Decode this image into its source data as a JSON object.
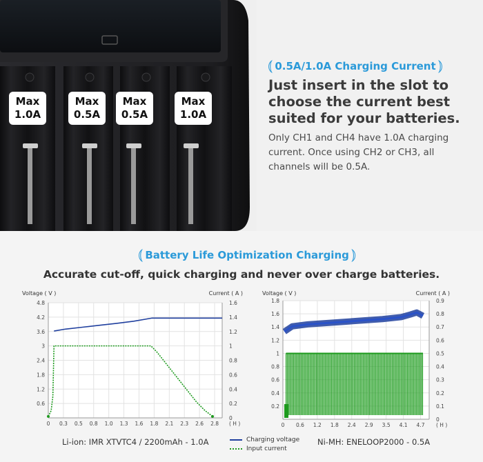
{
  "top": {
    "section_title": "0.5A/1.0A Charging Current",
    "heading": "Just insert in the slot to choose the current best suited for your batteries.",
    "description": "Only CH1 and CH4 have 1.0A charging current. Once using CH2 or CH3, all channels will be 0.5A.",
    "badges": [
      {
        "line1": "Max",
        "line2": "1.0A"
      },
      {
        "line1": "Max",
        "line2": "0.5A"
      },
      {
        "line1": "Max",
        "line2": "0.5A"
      },
      {
        "line1": "Max",
        "line2": "1.0A"
      }
    ]
  },
  "bottom": {
    "section_title": "Battery Life Optimization Charging",
    "heading": "Accurate cut-off, quick charging and never over charge batteries.",
    "legend": {
      "voltage": "Charging voltage",
      "current": "Input current"
    }
  },
  "colors": {
    "accent": "#2b9ad9",
    "voltage_line": "#1f3f9e",
    "current_line": "#1d9a1d"
  },
  "chart_data": [
    {
      "type": "line",
      "caption": "Li-ion: IMR XTVTC4 / 2200mAh - 1.0A",
      "ylabel_left": "Voltage ( V )",
      "ylabel_right": "Current ( A )",
      "xunit": "( H )",
      "x_ticks": [
        "0",
        "0.3",
        "0.5",
        "0.8",
        "1.0",
        "1.3",
        "1.6",
        "1.8",
        "2.1",
        "2.3",
        "2.6",
        "2.8"
      ],
      "y_left_ticks": [
        "0.6",
        "1.2",
        "1.8",
        "2.4",
        "3",
        "3.6",
        "4.2",
        "4.8"
      ],
      "y_right_ticks": [
        "0",
        "0.2",
        "0.4",
        "0.6",
        "0.8",
        "1",
        "1.2",
        "1.4",
        "1.6"
      ],
      "xlim": [
        0,
        3.05
      ],
      "ylim_left": [
        0,
        4.8
      ],
      "ylim_right": [
        0,
        1.6
      ],
      "series": [
        {
          "name": "Charging voltage",
          "axis": "left",
          "x": [
            0.1,
            0.3,
            0.6,
            0.9,
            1.2,
            1.5,
            1.82,
            2.2,
            2.6,
            3.05
          ],
          "y": [
            3.62,
            3.7,
            3.78,
            3.86,
            3.94,
            4.03,
            4.16,
            4.16,
            4.16,
            4.16
          ]
        },
        {
          "name": "Input current",
          "axis": "right",
          "x": [
            0.0,
            0.05,
            0.08,
            0.1,
            0.3,
            0.8,
            1.3,
            1.8,
            1.9,
            2.0,
            2.2,
            2.4,
            2.6,
            2.75,
            2.85,
            2.88
          ],
          "y": [
            0.02,
            0.1,
            0.3,
            1.0,
            1.0,
            1.0,
            1.0,
            1.0,
            0.92,
            0.82,
            0.62,
            0.42,
            0.22,
            0.1,
            0.04,
            0.02
          ]
        }
      ]
    },
    {
      "type": "line",
      "caption": "Ni-MH: ENELOOP2000 - 0.5A",
      "ylabel_left": "Voltage ( V )",
      "ylabel_right": "Current ( A )",
      "xunit": "( H )",
      "x_ticks": [
        "0",
        "0.6",
        "1.2",
        "1.8",
        "2.4",
        "2.9",
        "3.5",
        "4.1",
        "4.7"
      ],
      "y_left_ticks": [
        "0.2",
        "0.4",
        "0.6",
        "0.8",
        "1",
        "1.2",
        "1.4",
        "1.6",
        "1.8"
      ],
      "y_right_ticks": [
        "0",
        "0.1",
        "0.2",
        "0.3",
        "0.4",
        "0.5",
        "0.6",
        "0.7",
        "0.8",
        "0.9"
      ],
      "xlim": [
        0,
        4.7
      ],
      "ylim_left": [
        0,
        1.8
      ],
      "ylim_right": [
        0,
        0.9
      ],
      "series": [
        {
          "name": "Charging voltage",
          "axis": "left",
          "x": [
            0.05,
            0.3,
            0.8,
            1.4,
            2.0,
            2.6,
            3.2,
            3.8,
            4.1,
            4.3,
            4.5
          ],
          "y": [
            1.33,
            1.41,
            1.44,
            1.46,
            1.48,
            1.5,
            1.52,
            1.55,
            1.59,
            1.62,
            1.57
          ]
        },
        {
          "name": "Input current",
          "axis": "right",
          "x": [
            0.1,
            4.5
          ],
          "y": [
            0.5,
            0.5
          ]
        }
      ]
    }
  ]
}
